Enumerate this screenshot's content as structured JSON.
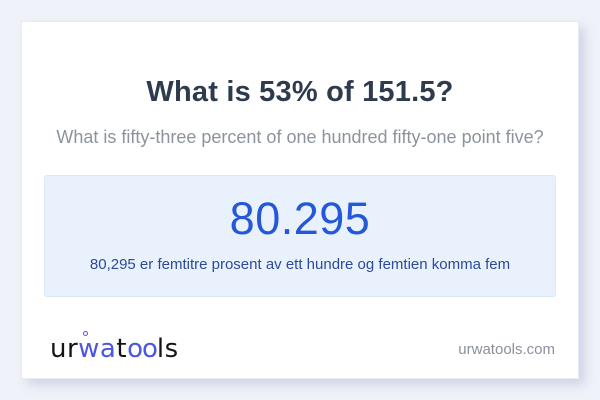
{
  "card": {
    "title": "What is 53% of 151.5?",
    "subtitle": "What is fifty-three percent of one hundred fifty-one point five?",
    "answer": {
      "value": "80.295",
      "description": "80,295 er femtitre prosent av ett hundre og femtien komma fem"
    },
    "footer": {
      "logo_parts": [
        {
          "text": "ur",
          "color": "dark"
        },
        {
          "text": "wa",
          "color": "blue"
        },
        {
          "text": "t",
          "color": "dark"
        },
        {
          "text": "oo",
          "color": "blue"
        },
        {
          "text": "ls",
          "color": "dark"
        }
      ],
      "site": "urwatools.com"
    }
  },
  "colors": {
    "page_background": "#f0f2f9",
    "card_background": "#ffffff",
    "title_text": "#2e3a4d",
    "subtitle_text": "#8d939e",
    "answer_box_background": "#e9f2fc",
    "answer_box_border": "#dbe8f7",
    "answer_value_text": "#2458d8",
    "answer_description_text": "#2b4a9c",
    "logo_dark": "#141414",
    "logo_blue": "#4d55e3",
    "site_text": "#8b909c"
  }
}
